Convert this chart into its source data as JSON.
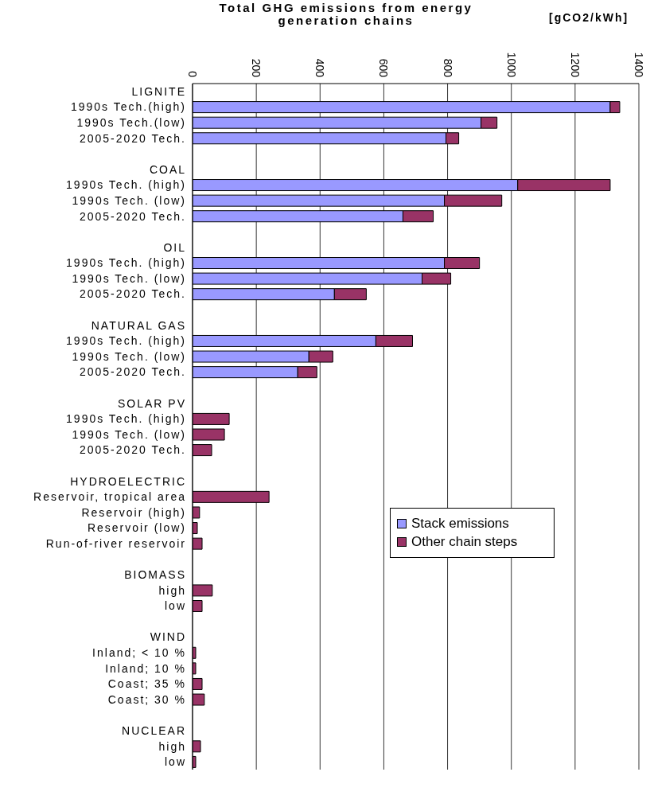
{
  "chart_data": {
    "type": "bar",
    "orientation": "horizontal",
    "stacked": true,
    "title": "Total GHG emissions from energy generation chains",
    "xlabel": "[gCO2/kWh]",
    "categories": [
      "LIGNITE",
      "1990s Tech.(high)",
      "1990s Tech.(low)",
      "2005-2020 Tech.",
      null,
      "COAL",
      "1990s Tech. (high)",
      "1990s Tech. (low)",
      "2005-2020 Tech.",
      null,
      "OIL",
      "1990s Tech. (high)",
      "1990s Tech. (low)",
      "2005-2020 Tech.",
      null,
      "NATURAL GAS",
      "1990s Tech. (high)",
      "1990s Tech. (low)",
      "2005-2020 Tech.",
      null,
      "SOLAR PV",
      "1990s Tech. (high)",
      "1990s Tech. (low)",
      "2005-2020 Tech.",
      null,
      "HYDROELECTRIC",
      "Reservoir, tropical area",
      "Reservoir (high)",
      "Reservoir (low)",
      "Run-of-river reservoir",
      null,
      "BIOMASS",
      "high",
      "low",
      null,
      "WIND",
      "Inland; < 10 %",
      "Inland; 10 %",
      "Coast; 35 %",
      "Coast; 30 %",
      null,
      "NUCLEAR",
      "high",
      "low"
    ],
    "series": [
      {
        "name": "Stack emissions",
        "color": "#9999ff",
        "values": [
          null,
          1310,
          905,
          795,
          null,
          null,
          1020,
          790,
          660,
          null,
          null,
          790,
          720,
          445,
          null,
          null,
          575,
          365,
          330,
          null,
          null,
          null,
          null,
          null,
          null,
          null,
          null,
          null,
          null,
          null,
          null,
          null,
          null,
          null,
          null,
          null,
          null,
          null,
          null,
          null,
          null,
          null,
          null,
          null
        ]
      },
      {
        "name": "Other chain steps",
        "color": "#993366",
        "values": [
          null,
          30,
          50,
          40,
          null,
          null,
          290,
          180,
          95,
          null,
          null,
          110,
          90,
          100,
          null,
          null,
          115,
          75,
          60,
          null,
          null,
          115,
          100,
          60,
          null,
          null,
          240,
          22,
          15,
          30,
          null,
          null,
          62,
          30,
          null,
          null,
          10,
          10,
          30,
          37,
          null,
          null,
          25,
          10
        ]
      }
    ],
    "xlim": [
      0,
      1400
    ],
    "xticks": [
      0,
      200,
      400,
      600,
      800,
      1000,
      1200,
      1400
    ],
    "grid": "x",
    "legend": "right"
  }
}
